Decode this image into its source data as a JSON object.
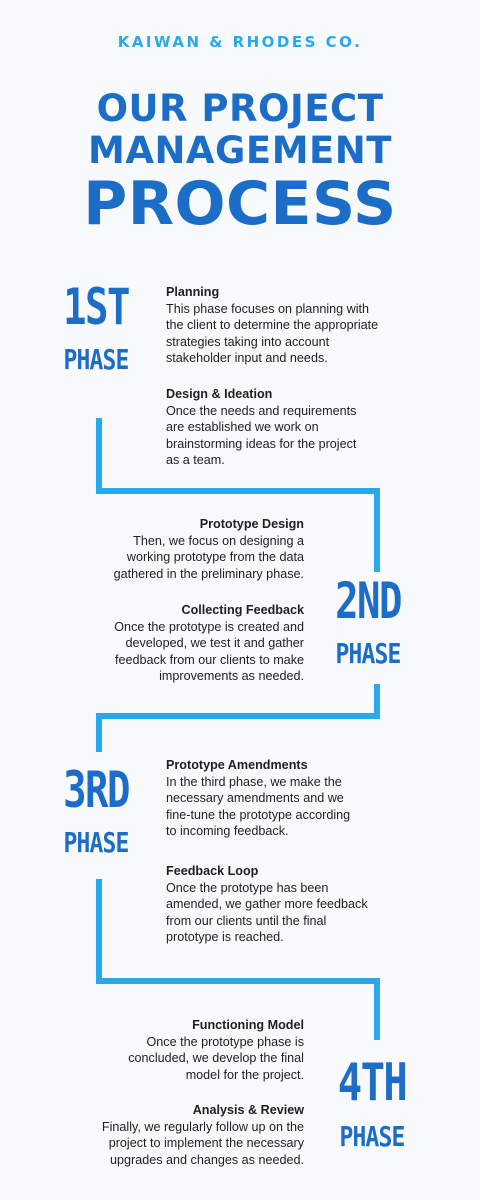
{
  "header": {
    "company": "KAIWAN & RHODES CO.",
    "title_line1": "OUR PROJECT",
    "title_line2": "MANAGEMENT",
    "title_line3": "PROCESS"
  },
  "colors": {
    "title": "#1b6dc8",
    "accent": "#29a9ea",
    "text": "#1e1f21",
    "background": "#f7f9fb"
  },
  "phases": [
    {
      "num": "1ST",
      "word": "PHASE",
      "steps": [
        {
          "title": "Planning",
          "body": "This phase focuses on planning with\nthe client to determine the appropriate\nstrategies taking into account\nstakeholder input and needs."
        },
        {
          "title": "Design & Ideation",
          "body": "Once the needs and requirements\nare established we work on\nbrainstorming ideas for the project\nas a team."
        }
      ]
    },
    {
      "num": "2ND",
      "word": "PHASE",
      "steps": [
        {
          "title": "Prototype Design",
          "body": "Then, we focus on designing a\nworking prototype from the data\ngathered in the preliminary phase."
        },
        {
          "title": "Collecting Feedback",
          "body": "Once the prototype is created and\ndeveloped, we test it and gather\nfeedback from our clients to make\nimprovements as needed."
        }
      ]
    },
    {
      "num": "3RD",
      "word": "PHASE",
      "steps": [
        {
          "title": "Prototype Amendments",
          "body": "In the third phase, we make the\nnecessary amendments and we\nfine-tune the prototype according\nto incoming feedback."
        },
        {
          "title": "Feedback Loop",
          "body": "Once the prototype has been\namended, we gather more feedback\nfrom our clients until the final\nprototype is reached."
        }
      ]
    },
    {
      "num": "4TH",
      "word": "PHASE",
      "steps": [
        {
          "title": "Functioning Model",
          "body": "Once the prototype phase is\nconcluded, we develop the final\nmodel for the project."
        },
        {
          "title": "Analysis & Review",
          "body": "Finally, we regularly follow up on the\nproject to implement the necessary\nupgrades and changes as needed."
        }
      ]
    }
  ]
}
